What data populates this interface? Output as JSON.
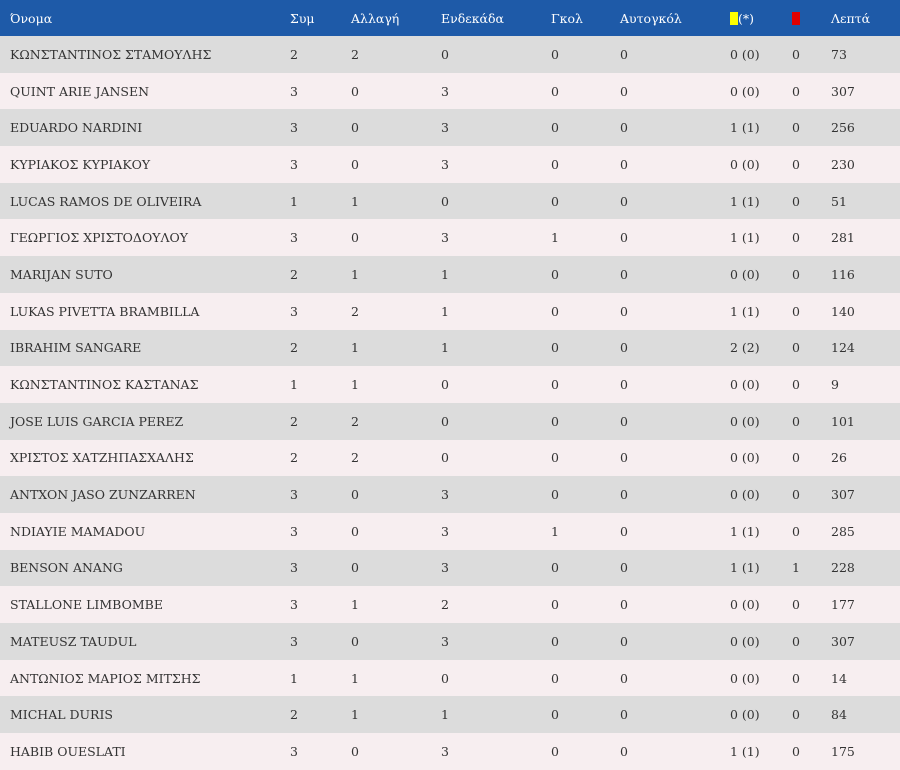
{
  "header": {
    "name": "Όνομα",
    "sym": "Συμ",
    "allagi": "Αλλαγή",
    "endekada": "Ενδεκάδα",
    "gkol": "Γκολ",
    "autogkol": "Αυτογκόλ",
    "yellow_suffix": "(*)",
    "lepta": "Λεπτά"
  },
  "colors": {
    "header_bg": "#1e5aa8",
    "yellow_card": "#ffff00",
    "red_card": "#e00000",
    "row_odd": "#dcdcdc",
    "row_even": "#f7eef0"
  },
  "rows": [
    {
      "name": "ΚΩΝΣΤΑΝΤΙΝΟΣ ΣΤΑΜΟΥΛΗΣ",
      "sym": "2",
      "allagi": "2",
      "endekada": "0",
      "gkol": "0",
      "autogkol": "0",
      "yellow": "0 (0)",
      "red": "0",
      "lepta": "73"
    },
    {
      "name": "QUINT ARIE JANSEN",
      "sym": "3",
      "allagi": "0",
      "endekada": "3",
      "gkol": "0",
      "autogkol": "0",
      "yellow": "0 (0)",
      "red": "0",
      "lepta": "307"
    },
    {
      "name": "EDUARDO NARDINI",
      "sym": "3",
      "allagi": "0",
      "endekada": "3",
      "gkol": "0",
      "autogkol": "0",
      "yellow": "1 (1)",
      "red": "0",
      "lepta": "256"
    },
    {
      "name": "ΚΥΡΙΑΚΟΣ ΚΥΡΙΑΚΟΥ",
      "sym": "3",
      "allagi": "0",
      "endekada": "3",
      "gkol": "0",
      "autogkol": "0",
      "yellow": "0 (0)",
      "red": "0",
      "lepta": "230"
    },
    {
      "name": "LUCAS RAMOS DE OLIVEIRA",
      "sym": "1",
      "allagi": "1",
      "endekada": "0",
      "gkol": "0",
      "autogkol": "0",
      "yellow": "1 (1)",
      "red": "0",
      "lepta": "51"
    },
    {
      "name": "ΓΕΩΡΓΙΟΣ ΧΡΙΣΤΟΔΟΥΛΟΥ",
      "sym": "3",
      "allagi": "0",
      "endekada": "3",
      "gkol": "1",
      "autogkol": "0",
      "yellow": "1 (1)",
      "red": "0",
      "lepta": "281"
    },
    {
      "name": "MARIJAN SUTO",
      "sym": "2",
      "allagi": "1",
      "endekada": "1",
      "gkol": "0",
      "autogkol": "0",
      "yellow": "0 (0)",
      "red": "0",
      "lepta": "116"
    },
    {
      "name": "LUKAS PIVETTA BRAMBILLA",
      "sym": "3",
      "allagi": "2",
      "endekada": "1",
      "gkol": "0",
      "autogkol": "0",
      "yellow": "1 (1)",
      "red": "0",
      "lepta": "140"
    },
    {
      "name": "IBRAHIM SANGARE",
      "sym": "2",
      "allagi": "1",
      "endekada": "1",
      "gkol": "0",
      "autogkol": "0",
      "yellow": "2 (2)",
      "red": "0",
      "lepta": "124"
    },
    {
      "name": "ΚΩΝΣΤΑΝΤΙΝΟΣ ΚΑΣΤΑΝΑΣ",
      "sym": "1",
      "allagi": "1",
      "endekada": "0",
      "gkol": "0",
      "autogkol": "0",
      "yellow": "0 (0)",
      "red": "0",
      "lepta": "9"
    },
    {
      "name": "JOSE LUIS GARCIA PEREZ",
      "sym": "2",
      "allagi": "2",
      "endekada": "0",
      "gkol": "0",
      "autogkol": "0",
      "yellow": "0 (0)",
      "red": "0",
      "lepta": "101"
    },
    {
      "name": "ΧΡΙΣΤΟΣ ΧΑΤΖΗΠΑΣΧΑΛΗΣ",
      "sym": "2",
      "allagi": "2",
      "endekada": "0",
      "gkol": "0",
      "autogkol": "0",
      "yellow": "0 (0)",
      "red": "0",
      "lepta": "26"
    },
    {
      "name": "ANTXON JASO ZUNZARREN",
      "sym": "3",
      "allagi": "0",
      "endekada": "3",
      "gkol": "0",
      "autogkol": "0",
      "yellow": "0 (0)",
      "red": "0",
      "lepta": "307"
    },
    {
      "name": "NDIAYIE MAMADOU",
      "sym": "3",
      "allagi": "0",
      "endekada": "3",
      "gkol": "1",
      "autogkol": "0",
      "yellow": "1 (1)",
      "red": "0",
      "lepta": "285"
    },
    {
      "name": "BENSON ANANG",
      "sym": "3",
      "allagi": "0",
      "endekada": "3",
      "gkol": "0",
      "autogkol": "0",
      "yellow": "1 (1)",
      "red": "1",
      "lepta": "228"
    },
    {
      "name": "STALLONE LIMBOMBE",
      "sym": "3",
      "allagi": "1",
      "endekada": "2",
      "gkol": "0",
      "autogkol": "0",
      "yellow": "0 (0)",
      "red": "0",
      "lepta": "177"
    },
    {
      "name": "MATEUSZ TAUDUL",
      "sym": "3",
      "allagi": "0",
      "endekada": "3",
      "gkol": "0",
      "autogkol": "0",
      "yellow": "0 (0)",
      "red": "0",
      "lepta": "307"
    },
    {
      "name": "ΑΝΤΩΝΙΟΣ ΜΑΡΙΟΣ ΜΙΤΣΗΣ",
      "sym": "1",
      "allagi": "1",
      "endekada": "0",
      "gkol": "0",
      "autogkol": "0",
      "yellow": "0 (0)",
      "red": "0",
      "lepta": "14"
    },
    {
      "name": "MICHAL DURIS",
      "sym": "2",
      "allagi": "1",
      "endekada": "1",
      "gkol": "0",
      "autogkol": "0",
      "yellow": "0 (0)",
      "red": "0",
      "lepta": "84"
    },
    {
      "name": "HABIB OUESLATI",
      "sym": "3",
      "allagi": "0",
      "endekada": "3",
      "gkol": "0",
      "autogkol": "0",
      "yellow": "1 (1)",
      "red": "0",
      "lepta": "175"
    }
  ]
}
